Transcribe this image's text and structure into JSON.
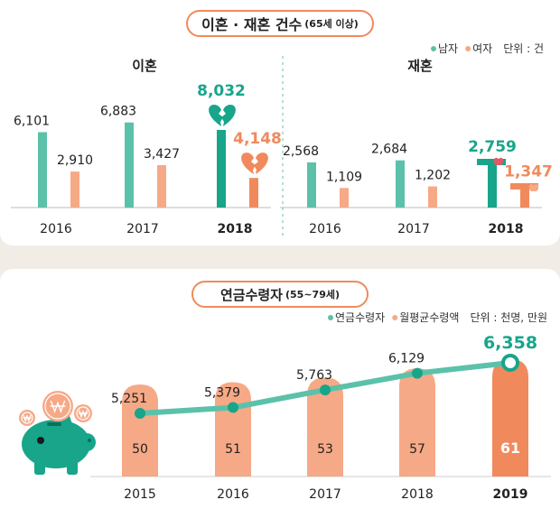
{
  "colors": {
    "male": "#5cc1a9",
    "female": "#f6a986",
    "male_dark": "#18a58a",
    "female_dark": "#f08a5d",
    "line": "#5cc1a9",
    "bar": "#f6a986",
    "bar_last": "#f08a5d"
  },
  "top": {
    "title": "이혼 · 재혼 건수",
    "title_sub": "(65세 이상)",
    "legend": [
      {
        "label": "남자",
        "series": "male"
      },
      {
        "label": "여자",
        "series": "female"
      }
    ],
    "unit": "단위 : 건"
  },
  "bottom": {
    "title": "연금수령자",
    "title_sub": "(55~79세)",
    "legend": [
      {
        "label": "연금수령자",
        "series": "line"
      },
      {
        "label": "월평균수령액",
        "series": "bar"
      }
    ],
    "unit": "단위 : 천명, 만원"
  },
  "chart_data": [
    {
      "type": "bar",
      "title": "이혼",
      "categories": [
        "2016",
        "2017",
        "2018"
      ],
      "series": [
        {
          "name": "남자",
          "values": [
            6101,
            6883,
            8032
          ],
          "labels": [
            "6,101",
            "6,883",
            "8,032"
          ]
        },
        {
          "name": "여자",
          "values": [
            2910,
            3427,
            4148
          ],
          "labels": [
            "2,910",
            "3,427",
            "4,148"
          ]
        }
      ]
    },
    {
      "type": "bar",
      "title": "재혼",
      "categories": [
        "2016",
        "2017",
        "2018"
      ],
      "series": [
        {
          "name": "남자",
          "values": [
            2568,
            2684,
            2759
          ],
          "labels": [
            "2,568",
            "2,684",
            "2,759"
          ]
        },
        {
          "name": "여자",
          "values": [
            1109,
            1202,
            1347
          ],
          "labels": [
            "1,109",
            "1,202",
            "1,347"
          ]
        }
      ]
    },
    {
      "type": "line",
      "categories": [
        "2015",
        "2016",
        "2017",
        "2018",
        "2019"
      ],
      "series": [
        {
          "name": "연금수령자",
          "kind": "line",
          "values": [
            5251,
            5379,
            5763,
            6129,
            6358
          ],
          "labels": [
            "5,251",
            "5,379",
            "5,763",
            "6,129",
            "6,358"
          ]
        },
        {
          "name": "월평균수령액",
          "kind": "bar",
          "values": [
            50,
            51,
            53,
            57,
            61
          ],
          "labels": [
            "50",
            "51",
            "53",
            "57",
            "61"
          ]
        }
      ]
    }
  ],
  "icons": [
    "broken-heart-icon",
    "chair-icon",
    "piggy-bank-icon",
    "won-coin-icon"
  ]
}
